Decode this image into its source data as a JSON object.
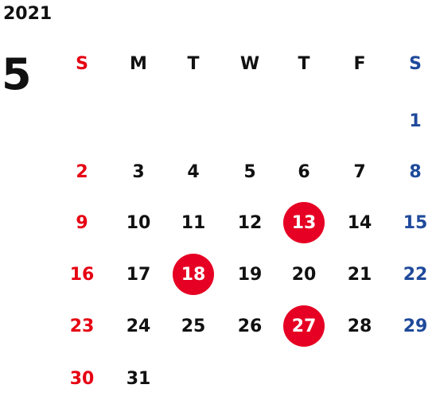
{
  "calendar": {
    "year": "2021",
    "month": "5",
    "weekdays": [
      "S",
      "M",
      "T",
      "W",
      "T",
      "F",
      "S"
    ],
    "weeks": [
      [
        "",
        "",
        "",
        "",
        "",
        "",
        "1"
      ],
      [
        "2",
        "3",
        "4",
        "5",
        "6",
        "7",
        "8"
      ],
      [
        "9",
        "10",
        "11",
        "12",
        "13",
        "14",
        "15"
      ],
      [
        "16",
        "17",
        "18",
        "19",
        "20",
        "21",
        "22"
      ],
      [
        "23",
        "24",
        "25",
        "26",
        "27",
        "28",
        "29"
      ],
      [
        "30",
        "31",
        "",
        "",
        "",
        "",
        ""
      ]
    ],
    "highlighted_days": [
      "13",
      "18",
      "27"
    ],
    "colors": {
      "sunday": "#e60012",
      "saturday": "#1f4a9b",
      "weekday": "#111111",
      "highlight_bg": "#e60023",
      "highlight_text": "#ffffff"
    }
  }
}
